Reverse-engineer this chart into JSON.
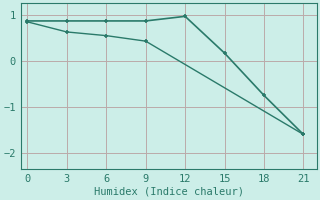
{
  "line1_x": [
    0,
    3,
    6,
    9,
    12,
    15,
    18,
    21
  ],
  "line1_y": [
    0.87,
    0.87,
    0.87,
    0.87,
    0.97,
    0.17,
    -0.75,
    -1.6
  ],
  "line2_x": [
    0,
    3,
    6,
    9,
    21
  ],
  "line2_y": [
    0.85,
    0.63,
    0.55,
    0.43,
    -1.6
  ],
  "line_color": "#2a7a6a",
  "bg_color": "#cceee8",
  "grid_color": "#bbaaaa",
  "xlabel": "Humidex (Indice chaleur)",
  "xlim": [
    -0.5,
    22
  ],
  "ylim": [
    -2.35,
    1.25
  ],
  "xticks": [
    0,
    3,
    6,
    9,
    12,
    15,
    18,
    21
  ],
  "yticks": [
    -2,
    -1,
    0,
    1
  ],
  "markersize": 3.5,
  "linewidth1": 1.2,
  "linewidth2": 1.0,
  "xlabel_fontsize": 7.5,
  "tick_fontsize": 7.5
}
